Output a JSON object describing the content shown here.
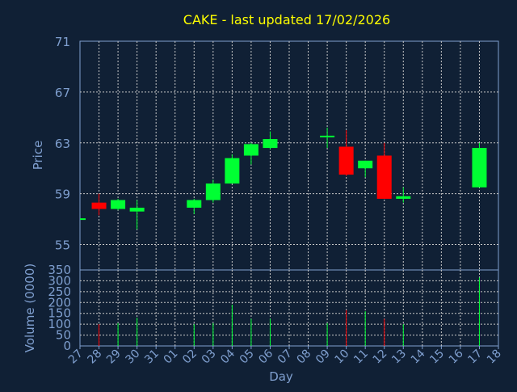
{
  "colors": {
    "background": "#102035",
    "title": "#ffff00",
    "axis_text": "#7f9fcf",
    "grid": "#c8c8c8",
    "up": "#00ff33",
    "down": "#ff0000"
  },
  "chart_data": {
    "type": "candlestick",
    "title": "CAKE - last updated 17/02/2026",
    "xlabel": "Day",
    "price_panel": {
      "ylabel": "Price",
      "ylim": [
        53,
        71
      ],
      "yticks": [
        55,
        59,
        63,
        67,
        71
      ]
    },
    "volume_panel": {
      "ylabel": "Volume (0000)",
      "ylim": [
        0,
        350
      ],
      "yticks": [
        0,
        50,
        100,
        150,
        200,
        250,
        300,
        350
      ]
    },
    "x_ticks": [
      "27",
      "28",
      "29",
      "30",
      "31",
      "01",
      "02",
      "03",
      "04",
      "05",
      "06",
      "07",
      "08",
      "09",
      "10",
      "11",
      "12",
      "13",
      "14",
      "15",
      "16",
      "17",
      "18"
    ],
    "series": [
      {
        "day": "27",
        "open": 57.0,
        "high": 57.0,
        "low": 57.0,
        "close": 57.0,
        "volume": 0
      },
      {
        "day": "28",
        "open": 58.3,
        "high": 59.0,
        "low": 57.3,
        "close": 57.8,
        "volume": 100
      },
      {
        "day": "29",
        "open": 57.8,
        "high": 58.6,
        "low": 57.7,
        "close": 58.5,
        "volume": 105
      },
      {
        "day": "30",
        "open": 57.6,
        "high": 58.5,
        "low": 56.2,
        "close": 57.9,
        "volume": 130
      },
      {
        "day": "02",
        "open": 57.9,
        "high": 58.6,
        "low": 57.4,
        "close": 58.5,
        "volume": 100
      },
      {
        "day": "03",
        "open": 58.5,
        "high": 60.1,
        "low": 58.3,
        "close": 59.8,
        "volume": 105
      },
      {
        "day": "04",
        "open": 59.8,
        "high": 62.1,
        "low": 59.8,
        "close": 61.8,
        "volume": 190
      },
      {
        "day": "05",
        "open": 62.0,
        "high": 63.0,
        "low": 61.3,
        "close": 62.9,
        "volume": 125
      },
      {
        "day": "06",
        "open": 62.6,
        "high": 63.9,
        "low": 62.5,
        "close": 63.3,
        "volume": 125
      },
      {
        "day": "09",
        "open": 63.5,
        "high": 64.2,
        "low": 62.6,
        "close": 63.5,
        "volume": 105
      },
      {
        "day": "10",
        "open": 62.7,
        "high": 64.0,
        "low": 60.4,
        "close": 60.5,
        "volume": 165
      },
      {
        "day": "11",
        "open": 61.0,
        "high": 61.6,
        "low": 60.3,
        "close": 61.6,
        "volume": 160
      },
      {
        "day": "12",
        "open": 62.0,
        "high": 63.0,
        "low": 58.6,
        "close": 58.6,
        "volume": 125
      },
      {
        "day": "13",
        "open": 58.6,
        "high": 59.5,
        "low": 58.3,
        "close": 58.8,
        "volume": 100
      },
      {
        "day": "17",
        "open": 59.5,
        "high": 63.0,
        "low": 59.5,
        "close": 62.6,
        "volume": 315
      }
    ]
  }
}
